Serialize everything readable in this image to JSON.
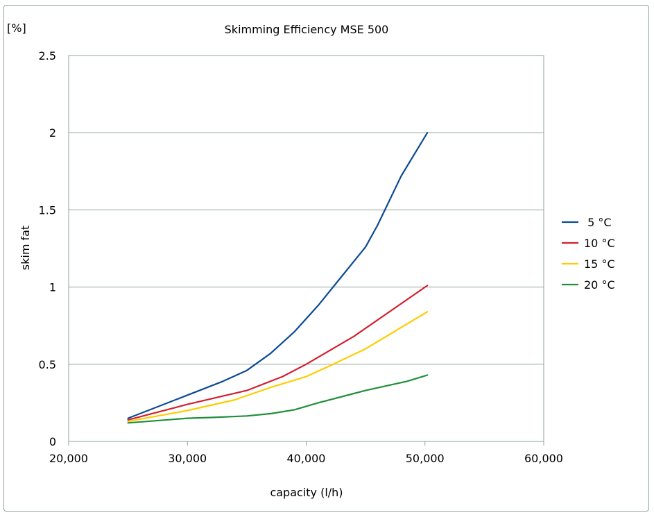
{
  "chart_data": {
    "type": "line",
    "title": "Skimming Efficiency MSE 500",
    "unit_label": "[%]",
    "xlabel": "capacity (l/h)",
    "ylabel": "skim fat",
    "xlim": [
      20000,
      60000
    ],
    "ylim": [
      0,
      2.5
    ],
    "x_ticks": [
      20000,
      30000,
      40000,
      50000,
      60000
    ],
    "x_tick_labels": [
      "20,000",
      "30,000",
      "40,000",
      "50,000",
      "60,000"
    ],
    "y_ticks": [
      0,
      0.5,
      1,
      1.5,
      2,
      2.5
    ],
    "y_tick_labels": [
      "0",
      "0.5",
      "1",
      "1.5",
      "2",
      "2.5"
    ],
    "grid": "horizontal",
    "legend_position": "right",
    "series": [
      {
        "name": " 5 °C",
        "color": "#0b4a94",
        "x": [
          25000,
          30000,
          33000,
          35000,
          37000,
          39000,
          41000,
          43000,
          45000,
          46000,
          47000,
          48000,
          50200
        ],
        "y": [
          0.15,
          0.3,
          0.39,
          0.46,
          0.57,
          0.71,
          0.88,
          1.07,
          1.26,
          1.4,
          1.56,
          1.72,
          2.0
        ]
      },
      {
        "name": "10 °C",
        "color": "#d2202f",
        "x": [
          25000,
          30000,
          35000,
          38000,
          40000,
          44000,
          50200
        ],
        "y": [
          0.14,
          0.24,
          0.33,
          0.42,
          0.5,
          0.68,
          1.01
        ]
      },
      {
        "name": "15 °C",
        "color": "#ffcc00",
        "x": [
          25000,
          30000,
          34000,
          37000,
          40000,
          42000,
          45000,
          50200
        ],
        "y": [
          0.13,
          0.2,
          0.27,
          0.35,
          0.42,
          0.49,
          0.6,
          0.84
        ]
      },
      {
        "name": "20 °C",
        "color": "#1f8f3a",
        "x": [
          25000,
          30000,
          32000,
          35000,
          37000,
          39000,
          41000,
          45000,
          48500,
          50200
        ],
        "y": [
          0.12,
          0.15,
          0.155,
          0.165,
          0.18,
          0.205,
          0.25,
          0.33,
          0.39,
          0.43
        ]
      }
    ]
  }
}
